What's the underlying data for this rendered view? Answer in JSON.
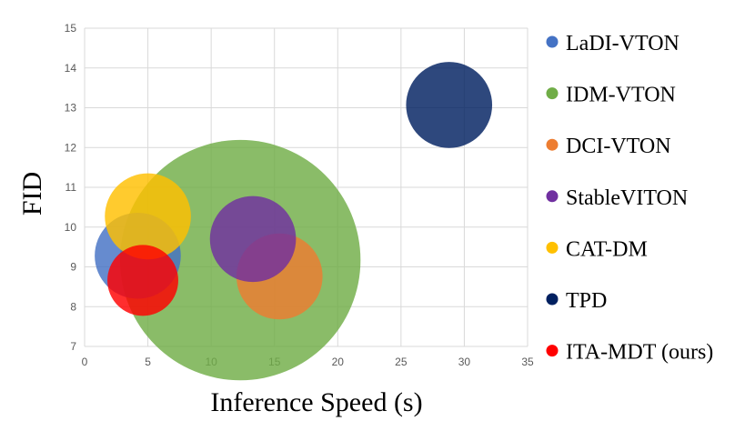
{
  "chart_data": {
    "type": "bubble",
    "title": "",
    "xlabel": "Inference Speed (s)",
    "ylabel": "FID",
    "xlim": [
      0,
      35
    ],
    "ylim": [
      7,
      15
    ],
    "xticks": [
      "0",
      "5",
      "10",
      "15",
      "20",
      "25",
      "30",
      "35"
    ],
    "yticks": [
      "7",
      "8",
      "9",
      "10",
      "11",
      "12",
      "13",
      "14",
      "15"
    ],
    "grid": true,
    "legend_position": "right",
    "series": [
      {
        "name": "LaDI-VTON",
        "x": 4.2,
        "y": 9.28,
        "size": 3.4,
        "color": "#4472C4"
      },
      {
        "name": "IDM-VTON",
        "x": 12.3,
        "y": 9.17,
        "size": 9.5,
        "color": "#70AD47"
      },
      {
        "name": "DCI-VTON",
        "x": 15.4,
        "y": 8.76,
        "size": 3.4,
        "color": "#ED7D31"
      },
      {
        "name": "StableVITON",
        "x": 13.3,
        "y": 9.7,
        "size": 3.4,
        "color": "#7030A0"
      },
      {
        "name": "CAT-DM",
        "x": 5.0,
        "y": 10.27,
        "size": 3.4,
        "color": "#FFC000"
      },
      {
        "name": "TPD",
        "x": 28.8,
        "y": 13.07,
        "size": 3.4,
        "color": "#002060"
      },
      {
        "name": "ITA-MDT (ours)",
        "x": 4.6,
        "y": 8.66,
        "size": 2.8,
        "color": "#FF0000"
      }
    ]
  }
}
